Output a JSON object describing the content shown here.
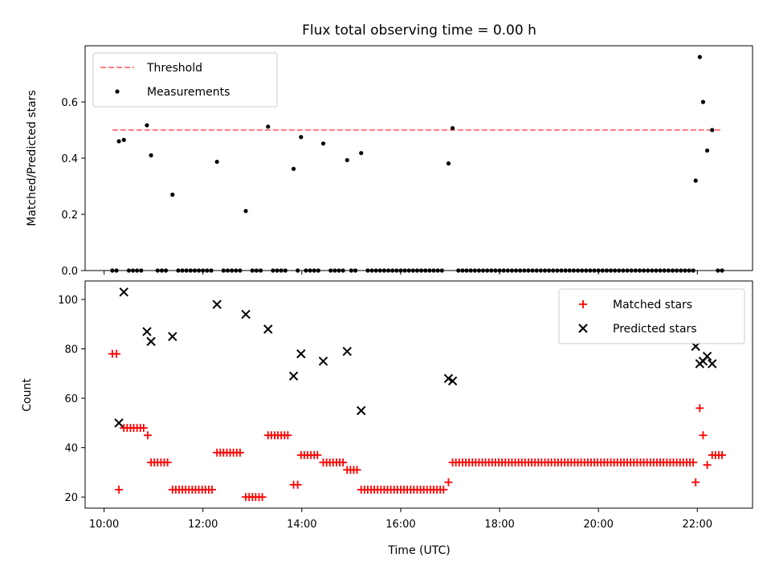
{
  "colors": {
    "threshold": "#ff7f7f",
    "measurements": "#000000",
    "matched": "#ff0000",
    "predicted": "#000000",
    "axes": "#000000",
    "background": "#ffffff"
  },
  "chart_data": [
    {
      "type": "scatter",
      "title": "Flux total observing time = 0.00 h",
      "xlabel": "",
      "ylabel": "Matched/Predicted stars",
      "xlim": [
        "09:37",
        "23:07"
      ],
      "ylim": [
        0,
        0.8
      ],
      "yticks": [
        0.0,
        0.2,
        0.4,
        0.6
      ],
      "ytick_labels": [
        "0.0",
        "0.2",
        "0.4",
        "0.6"
      ],
      "grid": false,
      "legend": {
        "location": "upper-left",
        "entries": [
          "Threshold",
          "Measurements"
        ]
      },
      "threshold": {
        "name": "Threshold",
        "style": "dashed",
        "value": 0.5,
        "x_range": [
          "10:10",
          "22:30"
        ]
      },
      "measurements": {
        "name": "Measurements",
        "x": [
          "10:18",
          "10:24",
          "10:52",
          "10:57",
          "11:23",
          "12:17",
          "12:52",
          "13:19",
          "13:50",
          "13:59",
          "14:26",
          "14:55",
          "15:12",
          "16:58",
          "17:03",
          "21:58",
          "22:03",
          "22:07",
          "22:12",
          "22:18"
        ],
        "y": [
          0.46,
          0.465,
          0.517,
          0.41,
          0.27,
          0.387,
          0.212,
          0.512,
          0.362,
          0.475,
          0.452,
          0.393,
          0.418,
          0.381,
          0.507,
          0.32,
          0.76,
          0.6,
          0.427,
          0.5
        ],
        "zero_x": [
          "10:10",
          "10:15",
          "10:30",
          "10:35",
          "10:40",
          "10:45",
          "11:05",
          "11:10",
          "11:15",
          "11:30",
          "11:35",
          "11:40",
          "11:45",
          "11:50",
          "11:55",
          "12:00",
          "12:05",
          "12:10",
          "12:25",
          "12:30",
          "12:35",
          "12:40",
          "12:45",
          "13:00",
          "13:05",
          "13:10",
          "13:25",
          "13:30",
          "13:35",
          "13:40",
          "13:55",
          "14:05",
          "14:10",
          "14:15",
          "14:20",
          "14:35",
          "14:40",
          "14:45",
          "14:50",
          "15:00",
          "15:05",
          "15:20",
          "15:25",
          "15:30",
          "15:35",
          "15:40",
          "15:45",
          "15:50",
          "15:55",
          "16:00",
          "16:05",
          "16:10",
          "16:15",
          "16:20",
          "16:25",
          "16:30",
          "16:35",
          "16:40",
          "16:45",
          "16:50",
          "17:10",
          "17:15",
          "17:20",
          "17:25",
          "17:30",
          "17:35",
          "17:40",
          "17:45",
          "17:50",
          "17:55",
          "18:00",
          "18:05",
          "18:10",
          "18:15",
          "18:20",
          "18:25",
          "18:30",
          "18:35",
          "18:40",
          "18:45",
          "18:50",
          "18:55",
          "19:00",
          "19:05",
          "19:10",
          "19:15",
          "19:20",
          "19:25",
          "19:30",
          "19:35",
          "19:40",
          "19:45",
          "19:50",
          "19:55",
          "20:00",
          "20:05",
          "20:10",
          "20:15",
          "20:20",
          "20:25",
          "20:30",
          "20:35",
          "20:40",
          "20:45",
          "20:50",
          "20:55",
          "21:00",
          "21:05",
          "21:10",
          "21:15",
          "21:20",
          "21:25",
          "21:30",
          "21:35",
          "21:40",
          "21:45",
          "21:50",
          "21:55",
          "22:25",
          "22:30"
        ]
      }
    },
    {
      "type": "scatter",
      "title": "",
      "xlabel": "Time (UTC)",
      "ylabel": "Count",
      "xlim": [
        "09:37",
        "23:07"
      ],
      "ylim": [
        15.5,
        107.5
      ],
      "xticks": [
        "10:00",
        "12:00",
        "14:00",
        "16:00",
        "18:00",
        "20:00",
        "22:00"
      ],
      "yticks": [
        20,
        40,
        60,
        80,
        100
      ],
      "ytick_labels": [
        "20",
        "40",
        "60",
        "80",
        "100"
      ],
      "grid": false,
      "legend": {
        "location": "upper-right",
        "entries": [
          "Matched stars",
          "Predicted stars"
        ]
      },
      "series": [
        {
          "name": "Matched stars",
          "marker": "plus",
          "segments": [
            {
              "from": "10:10",
              "to": "10:15",
              "step": 5,
              "y": 78
            },
            {
              "from": "10:18",
              "to": "10:18",
              "step": 5,
              "y": 23
            },
            {
              "from": "10:24",
              "to": "10:50",
              "step": 4,
              "y": 48
            },
            {
              "from": "10:53",
              "to": "10:53",
              "step": 5,
              "y": 45
            },
            {
              "from": "10:57",
              "to": "11:20",
              "step": 4,
              "y": 34
            },
            {
              "from": "11:23",
              "to": "12:12",
              "step": 4,
              "y": 23
            },
            {
              "from": "12:17",
              "to": "12:48",
              "step": 4,
              "y": 38
            },
            {
              "from": "12:52",
              "to": "13:15",
              "step": 4,
              "y": 20
            },
            {
              "from": "13:19",
              "to": "13:46",
              "step": 4,
              "y": 45
            },
            {
              "from": "13:50",
              "to": "13:55",
              "step": 5,
              "y": 25
            },
            {
              "from": "13:59",
              "to": "14:22",
              "step": 4,
              "y": 37
            },
            {
              "from": "14:26",
              "to": "14:52",
              "step": 4,
              "y": 34
            },
            {
              "from": "14:55",
              "to": "15:08",
              "step": 4,
              "y": 31
            },
            {
              "from": "15:12",
              "to": "16:54",
              "step": 4,
              "y": 23
            },
            {
              "from": "16:58",
              "to": "16:58",
              "step": 5,
              "y": 26
            },
            {
              "from": "17:03",
              "to": "21:55",
              "step": 4,
              "y": 34
            },
            {
              "from": "21:58",
              "to": "21:58",
              "step": 5,
              "y": 26
            },
            {
              "from": "22:03",
              "to": "22:03",
              "step": 5,
              "y": 56
            },
            {
              "from": "22:07",
              "to": "22:07",
              "step": 5,
              "y": 45
            },
            {
              "from": "22:12",
              "to": "22:12",
              "step": 5,
              "y": 33
            },
            {
              "from": "22:18",
              "to": "22:30",
              "step": 4,
              "y": 37
            }
          ]
        },
        {
          "name": "Predicted stars",
          "marker": "x",
          "x": [
            "10:18",
            "10:24",
            "10:52",
            "10:57",
            "11:23",
            "12:17",
            "12:52",
            "13:19",
            "13:50",
            "13:59",
            "14:26",
            "14:55",
            "15:12",
            "16:58",
            "17:03",
            "21:58",
            "22:03",
            "22:07",
            "22:12",
            "22:18"
          ],
          "y": [
            50,
            103,
            87,
            83,
            85,
            98,
            94,
            88,
            69,
            78,
            75,
            79,
            55,
            68,
            67,
            81,
            74,
            75,
            77,
            74
          ]
        }
      ]
    }
  ]
}
